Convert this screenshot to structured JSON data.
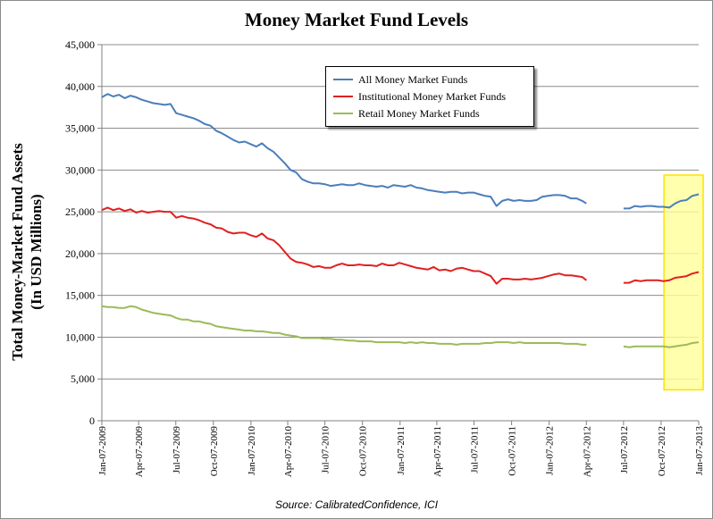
{
  "chart_data": {
    "type": "line",
    "title": "Money Market Fund Levels",
    "ylabel_line1": "Total Money-Market Fund Assets",
    "ylabel_line2": "(In USD Millions)",
    "source": "Source: CalibratedConfidence, ICI",
    "ylim": [
      0,
      45000
    ],
    "yticks": [
      "0",
      "5,000",
      "10,000",
      "15,000",
      "20,000",
      "25,000",
      "30,000",
      "35,000",
      "40,000",
      "45,000"
    ],
    "yticks_values": [
      0,
      5000,
      10000,
      15000,
      20000,
      25000,
      30000,
      35000,
      40000,
      45000
    ],
    "xlim": [
      "2009-01-07",
      "2013-01-07"
    ],
    "xticks": [
      "Jan-07-2009",
      "Apr-07-2009",
      "Jul-07-2009",
      "Oct-07-2009",
      "Jan-07-2010",
      "Apr-07-2010",
      "Jul-07-2010",
      "Oct-07-2010",
      "Jan-07-2011",
      "Apr-07-2011",
      "Jul-07-2011",
      "Oct-07-2011",
      "Jan-07-2012",
      "Apr-07-2012",
      "Jul-07-2012",
      "Oct-07-2012",
      "Jan-07-2013"
    ],
    "xticks_dates": [
      "2009-01-07",
      "2009-04-07",
      "2009-07-07",
      "2009-10-07",
      "2010-01-07",
      "2010-04-07",
      "2010-07-07",
      "2010-10-07",
      "2011-01-07",
      "2011-04-07",
      "2011-07-07",
      "2011-10-07",
      "2012-01-07",
      "2012-04-07",
      "2012-07-07",
      "2012-10-07",
      "2013-01-07"
    ],
    "grid": "horizontal",
    "legend_position": "top-center",
    "highlight_region": {
      "x": [
        "2012-10-14",
        "2013-01-07"
      ],
      "y": [
        3700,
        29400
      ],
      "color": "#ffff99"
    },
    "series": [
      {
        "name": "All Money Market Funds",
        "color": "#4a7ebb",
        "x": [
          "2009-01-07",
          "2009-01-21",
          "2009-02-04",
          "2009-02-18",
          "2009-03-04",
          "2009-03-18",
          "2009-04-01",
          "2009-04-15",
          "2009-04-29",
          "2009-05-13",
          "2009-05-27",
          "2009-06-10",
          "2009-06-24",
          "2009-07-08",
          "2009-07-22",
          "2009-08-05",
          "2009-08-19",
          "2009-09-02",
          "2009-09-16",
          "2009-09-30",
          "2009-10-14",
          "2009-10-28",
          "2009-11-11",
          "2009-11-25",
          "2009-12-09",
          "2009-12-23",
          "2010-01-06",
          "2010-01-20",
          "2010-02-03",
          "2010-02-17",
          "2010-03-03",
          "2010-03-17",
          "2010-03-31",
          "2010-04-14",
          "2010-04-28",
          "2010-05-12",
          "2010-05-26",
          "2010-06-09",
          "2010-06-23",
          "2010-07-07",
          "2010-07-21",
          "2010-08-04",
          "2010-08-18",
          "2010-09-01",
          "2010-09-15",
          "2010-09-29",
          "2010-10-13",
          "2010-10-27",
          "2010-11-10",
          "2010-11-24",
          "2010-12-08",
          "2010-12-22",
          "2011-01-05",
          "2011-01-19",
          "2011-02-02",
          "2011-02-16",
          "2011-03-02",
          "2011-03-16",
          "2011-03-30",
          "2011-04-13",
          "2011-04-27",
          "2011-05-11",
          "2011-05-25",
          "2011-06-08",
          "2011-06-22",
          "2011-07-06",
          "2011-07-20",
          "2011-08-03",
          "2011-08-17",
          "2011-08-31",
          "2011-09-14",
          "2011-09-28",
          "2011-10-12",
          "2011-10-26",
          "2011-11-09",
          "2011-11-23",
          "2011-12-07",
          "2011-12-21",
          "2012-01-04",
          "2012-01-18",
          "2012-02-01",
          "2012-02-15",
          "2012-02-29",
          "2012-03-14",
          "2012-03-28",
          "2012-04-07"
        ],
        "values": [
          38700,
          39100,
          38800,
          39000,
          38600,
          38900,
          38700,
          38400,
          38200,
          38000,
          37900,
          37800,
          37900,
          36800,
          36600,
          36400,
          36200,
          35900,
          35500,
          35300,
          34700,
          34400,
          34000,
          33600,
          33300,
          33400,
          33100,
          32800,
          33200,
          32600,
          32200,
          31500,
          30800,
          30000,
          29700,
          28900,
          28600,
          28400,
          28400,
          28300,
          28100,
          28200,
          28300,
          28200,
          28200,
          28400,
          28200,
          28100,
          28000,
          28100,
          27900,
          28200,
          28100,
          28000,
          28200,
          27900,
          27800,
          27600,
          27500,
          27400,
          27300,
          27400,
          27400,
          27200,
          27300,
          27300,
          27100,
          26900,
          26800,
          25700,
          26300,
          26500,
          26300,
          26400,
          26300,
          26300,
          26400,
          26800,
          26900,
          27000,
          27000,
          26900,
          26600,
          26600,
          26300,
          26000
        ]
      },
      {
        "name": "All Money Market Funds",
        "color": "#4a7ebb",
        "x": [
          "2012-07-07",
          "2012-07-21",
          "2012-08-04",
          "2012-08-18",
          "2012-09-01",
          "2012-09-15",
          "2012-09-29",
          "2012-10-13",
          "2012-10-27",
          "2012-11-10",
          "2012-11-24",
          "2012-12-08",
          "2012-12-22",
          "2013-01-07"
        ],
        "values": [
          25400,
          25400,
          25700,
          25600,
          25700,
          25700,
          25600,
          25600,
          25500,
          26000,
          26300,
          26400,
          26900,
          27100
        ]
      },
      {
        "name": "Institutional Money Market Funds",
        "color": "#e02020",
        "x": [
          "2009-01-07",
          "2009-01-21",
          "2009-02-04",
          "2009-02-18",
          "2009-03-04",
          "2009-03-18",
          "2009-04-01",
          "2009-04-15",
          "2009-04-29",
          "2009-05-13",
          "2009-05-27",
          "2009-06-10",
          "2009-06-24",
          "2009-07-08",
          "2009-07-22",
          "2009-08-05",
          "2009-08-19",
          "2009-09-02",
          "2009-09-16",
          "2009-09-30",
          "2009-10-14",
          "2009-10-28",
          "2009-11-11",
          "2009-11-25",
          "2009-12-09",
          "2009-12-23",
          "2010-01-06",
          "2010-01-20",
          "2010-02-03",
          "2010-02-17",
          "2010-03-03",
          "2010-03-17",
          "2010-03-31",
          "2010-04-14",
          "2010-04-28",
          "2010-05-12",
          "2010-05-26",
          "2010-06-09",
          "2010-06-23",
          "2010-07-07",
          "2010-07-21",
          "2010-08-04",
          "2010-08-18",
          "2010-09-01",
          "2010-09-15",
          "2010-09-29",
          "2010-10-13",
          "2010-10-27",
          "2010-11-10",
          "2010-11-24",
          "2010-12-08",
          "2010-12-22",
          "2011-01-05",
          "2011-01-19",
          "2011-02-02",
          "2011-02-16",
          "2011-03-02",
          "2011-03-16",
          "2011-03-30",
          "2011-04-13",
          "2011-04-27",
          "2011-05-11",
          "2011-05-25",
          "2011-06-08",
          "2011-06-22",
          "2011-07-06",
          "2011-07-20",
          "2011-08-03",
          "2011-08-17",
          "2011-08-31",
          "2011-09-14",
          "2011-09-28",
          "2011-10-12",
          "2011-10-26",
          "2011-11-09",
          "2011-11-23",
          "2011-12-07",
          "2011-12-21",
          "2012-01-04",
          "2012-01-18",
          "2012-02-01",
          "2012-02-15",
          "2012-02-29",
          "2012-03-14",
          "2012-03-28",
          "2012-04-07"
        ],
        "values": [
          25200,
          25500,
          25200,
          25400,
          25100,
          25300,
          24900,
          25100,
          24900,
          25000,
          25100,
          25000,
          25000,
          24300,
          24500,
          24300,
          24200,
          24000,
          23700,
          23500,
          23100,
          23000,
          22600,
          22400,
          22500,
          22500,
          22200,
          22000,
          22400,
          21800,
          21600,
          21000,
          20200,
          19400,
          19000,
          18900,
          18700,
          18400,
          18500,
          18300,
          18300,
          18600,
          18800,
          18600,
          18600,
          18700,
          18600,
          18600,
          18500,
          18800,
          18600,
          18600,
          18900,
          18700,
          18500,
          18300,
          18200,
          18100,
          18400,
          18000,
          18100,
          17900,
          18200,
          18300,
          18100,
          17900,
          17900,
          17600,
          17300,
          16400,
          17000,
          17000,
          16900,
          16900,
          17000,
          16900,
          17000,
          17100,
          17300,
          17500,
          17600,
          17400,
          17400,
          17300,
          17200,
          16800
        ]
      },
      {
        "name": "Institutional Money Market Funds",
        "color": "#e02020",
        "x": [
          "2012-07-07",
          "2012-07-21",
          "2012-08-04",
          "2012-08-18",
          "2012-09-01",
          "2012-09-15",
          "2012-09-29",
          "2012-10-13",
          "2012-10-27",
          "2012-11-10",
          "2012-11-24",
          "2012-12-08",
          "2012-12-22",
          "2013-01-07"
        ],
        "values": [
          16500,
          16500,
          16800,
          16700,
          16800,
          16800,
          16800,
          16700,
          16800,
          17100,
          17200,
          17300,
          17600,
          17800
        ]
      },
      {
        "name": "Retail Money Market Funds",
        "color": "#9bbb59",
        "x": [
          "2009-01-07",
          "2009-01-21",
          "2009-02-04",
          "2009-02-18",
          "2009-03-04",
          "2009-03-18",
          "2009-04-01",
          "2009-04-15",
          "2009-04-29",
          "2009-05-13",
          "2009-05-27",
          "2009-06-10",
          "2009-06-24",
          "2009-07-08",
          "2009-07-22",
          "2009-08-05",
          "2009-08-19",
          "2009-09-02",
          "2009-09-16",
          "2009-09-30",
          "2009-10-14",
          "2009-10-28",
          "2009-11-11",
          "2009-11-25",
          "2009-12-09",
          "2009-12-23",
          "2010-01-06",
          "2010-01-20",
          "2010-02-03",
          "2010-02-17",
          "2010-03-03",
          "2010-03-17",
          "2010-03-31",
          "2010-04-14",
          "2010-04-28",
          "2010-05-12",
          "2010-05-26",
          "2010-06-09",
          "2010-06-23",
          "2010-07-07",
          "2010-07-21",
          "2010-08-04",
          "2010-08-18",
          "2010-09-01",
          "2010-09-15",
          "2010-09-29",
          "2010-10-13",
          "2010-10-27",
          "2010-11-10",
          "2010-11-24",
          "2010-12-08",
          "2010-12-22",
          "2011-01-05",
          "2011-01-19",
          "2011-02-02",
          "2011-02-16",
          "2011-03-02",
          "2011-03-16",
          "2011-03-30",
          "2011-04-13",
          "2011-04-27",
          "2011-05-11",
          "2011-05-25",
          "2011-06-08",
          "2011-06-22",
          "2011-07-06",
          "2011-07-20",
          "2011-08-03",
          "2011-08-17",
          "2011-08-31",
          "2011-09-14",
          "2011-09-28",
          "2011-10-12",
          "2011-10-26",
          "2011-11-09",
          "2011-11-23",
          "2011-12-07",
          "2011-12-21",
          "2012-01-04",
          "2012-01-18",
          "2012-02-01",
          "2012-02-15",
          "2012-02-29",
          "2012-03-14",
          "2012-03-28",
          "2012-04-07"
        ],
        "values": [
          13700,
          13600,
          13600,
          13500,
          13500,
          13700,
          13600,
          13300,
          13100,
          12900,
          12800,
          12700,
          12600,
          12300,
          12100,
          12100,
          11900,
          11900,
          11700,
          11600,
          11300,
          11200,
          11100,
          11000,
          10900,
          10800,
          10800,
          10700,
          10700,
          10600,
          10500,
          10500,
          10300,
          10200,
          10100,
          9900,
          9900,
          9900,
          9900,
          9800,
          9800,
          9700,
          9700,
          9600,
          9600,
          9500,
          9500,
          9500,
          9400,
          9400,
          9400,
          9400,
          9400,
          9300,
          9400,
          9300,
          9400,
          9300,
          9300,
          9200,
          9200,
          9200,
          9100,
          9200,
          9200,
          9200,
          9200,
          9300,
          9300,
          9400,
          9400,
          9400,
          9300,
          9400,
          9300,
          9300,
          9300,
          9300,
          9300,
          9300,
          9300,
          9200,
          9200,
          9200,
          9100,
          9100
        ]
      },
      {
        "name": "Retail Money Market Funds",
        "color": "#9bbb59",
        "x": [
          "2012-07-07",
          "2012-07-21",
          "2012-08-04",
          "2012-08-18",
          "2012-09-01",
          "2012-09-15",
          "2012-09-29",
          "2012-10-13",
          "2012-10-27",
          "2012-11-10",
          "2012-11-24",
          "2012-12-08",
          "2012-12-22",
          "2013-01-07"
        ],
        "values": [
          8900,
          8800,
          8900,
          8900,
          8900,
          8900,
          8900,
          8900,
          8800,
          8900,
          9000,
          9100,
          9300,
          9400
        ]
      }
    ]
  }
}
